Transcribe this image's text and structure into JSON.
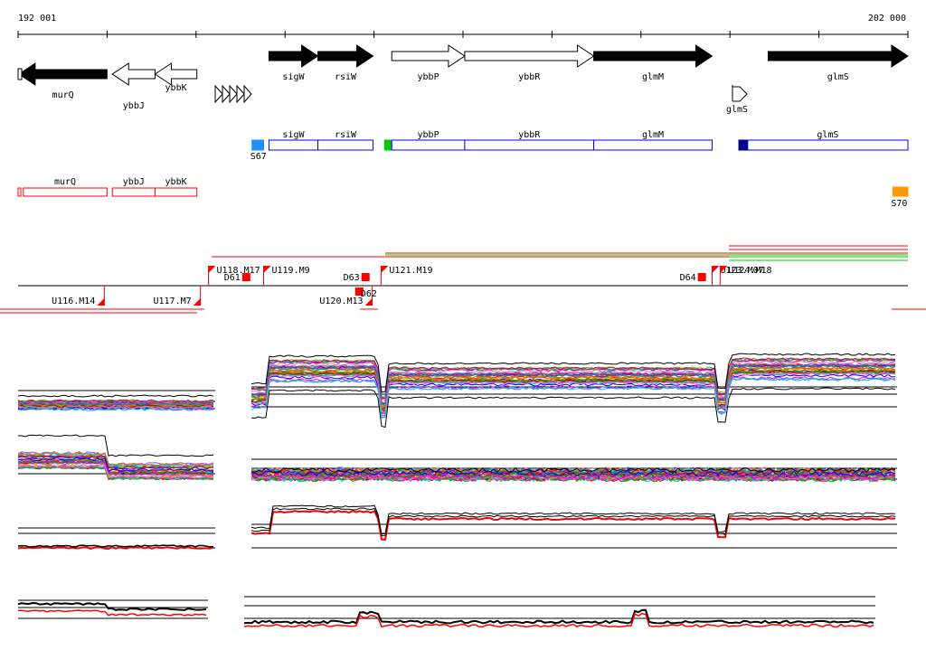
{
  "scale": {
    "start_label": "192 001",
    "end_label": "202 000",
    "start": 192001,
    "end": 202000
  },
  "colors": {
    "black": "#000000",
    "red": "#ff0000",
    "blue": "#0000ff",
    "green": "#00cc00",
    "s67": "#1e90ff",
    "s70": "#ff9900",
    "navy": "#000080"
  },
  "genes_forward": [
    {
      "name": "sigW",
      "start": 194820,
      "end": 195370,
      "filled": true
    },
    {
      "name": "rsiW",
      "start": 195370,
      "end": 195990,
      "filled": true
    },
    {
      "name": "ybbP",
      "start": 196200,
      "end": 197020,
      "filled": false
    },
    {
      "name": "ybbR",
      "start": 197020,
      "end": 198470,
      "filled": false
    },
    {
      "name": "glmM",
      "start": 198470,
      "end": 199800,
      "filled": true
    },
    {
      "name": "glmS",
      "start": 200430,
      "end": 202000,
      "filled": true
    }
  ],
  "genes_reverse": [
    {
      "name": "murQ",
      "start": 192010,
      "end": 193000,
      "filled": true
    },
    {
      "name": "ybbJ",
      "start": 193060,
      "end": 193540,
      "filled": false
    },
    {
      "name": "ybbK",
      "start": 193540,
      "end": 194010,
      "filled": false
    }
  ],
  "riboswitch": {
    "name": "glmS"
  },
  "operons_forward": [
    {
      "name": "",
      "type": "marker",
      "color": "s67",
      "label": "S67",
      "start": 194630,
      "end": 194760
    },
    {
      "name": "sigW",
      "start": 194820,
      "end": 195370
    },
    {
      "name": "rsiW",
      "start": 195370,
      "end": 195990
    },
    {
      "name": "",
      "type": "marker",
      "color": "green",
      "start": 196120,
      "end": 196200
    },
    {
      "name": "ybbP",
      "start": 196200,
      "end": 197020
    },
    {
      "name": "ybbR",
      "start": 197020,
      "end": 198470
    },
    {
      "name": "glmM",
      "start": 198470,
      "end": 199800
    },
    {
      "name": "",
      "type": "marker",
      "color": "navy",
      "start": 200100,
      "end": 200200
    },
    {
      "name": "glmS",
      "start": 200200,
      "end": 202000
    }
  ],
  "operons_reverse": [
    {
      "name": "murQ",
      "start": 192060,
      "end": 193000
    },
    {
      "name": "ybbJ",
      "start": 193060,
      "end": 193540
    },
    {
      "name": "ybbK",
      "start": 193540,
      "end": 194010
    },
    {
      "name": "",
      "type": "marker",
      "color": "s70",
      "label": "S70",
      "start": 201790,
      "end": 202000
    }
  ],
  "features_up": [
    {
      "label": "U118.M17",
      "pos": 194140
    },
    {
      "label": "U119.M9",
      "pos": 194760
    },
    {
      "label": "U121.M19",
      "pos": 196080
    },
    {
      "label": "U123.M07",
      "pos": 199800
    },
    {
      "label": "U124.M18",
      "pos": 199890
    }
  ],
  "features_down": [
    {
      "label": "U116.M14",
      "pos": 192970
    },
    {
      "label": "U117.M7",
      "pos": 194050
    },
    {
      "label": "U120.M13",
      "pos": 195980
    }
  ],
  "dots": [
    {
      "label": "D61",
      "pos": 194560,
      "side": "up"
    },
    {
      "label": "D63",
      "pos": 195900,
      "side": "up"
    },
    {
      "label": "D62",
      "pos": 195830,
      "side": "down"
    },
    {
      "label": "D64",
      "pos": 199680,
      "side": "up"
    }
  ]
}
